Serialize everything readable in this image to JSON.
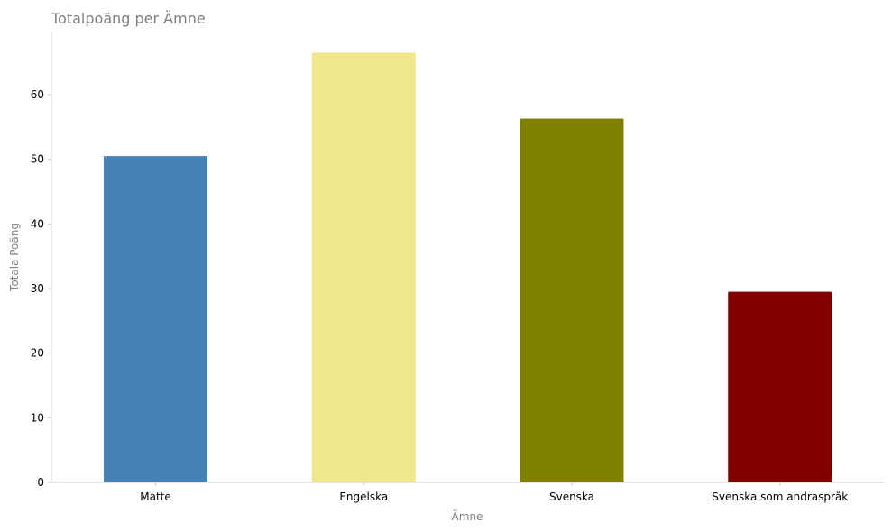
{
  "chart_data": {
    "type": "bar",
    "title": "Totalpoäng per Ämne",
    "xlabel": "Ämne",
    "ylabel": "Totala Poäng",
    "categories": [
      "Matte",
      "Engelska",
      "Svenska",
      "Svenska som andraspråk"
    ],
    "values": [
      50.5,
      66.5,
      56.3,
      29.5
    ],
    "colors": [
      "#4682b4",
      "#f0e68c",
      "#808000",
      "#800000"
    ],
    "ylim": [
      0,
      70
    ],
    "yticks": [
      0,
      10,
      20,
      30,
      40,
      50,
      60
    ],
    "grid": false,
    "legend": "none"
  }
}
